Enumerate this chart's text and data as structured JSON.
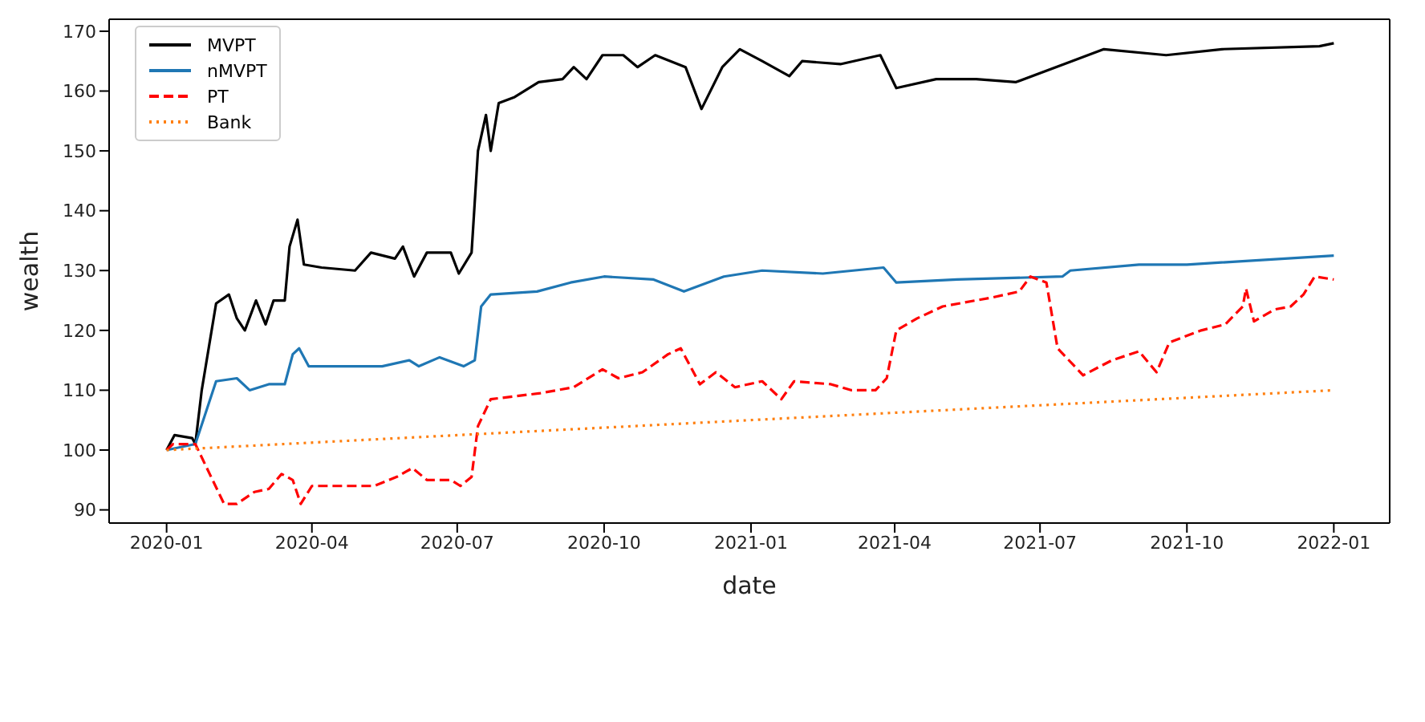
{
  "chart_data": {
    "type": "line",
    "xlabel": "date",
    "ylabel": "wealth",
    "xlim": [
      "2019-11-26",
      "2022-02-05"
    ],
    "ylim": [
      87.8,
      172
    ],
    "xticks": [
      {
        "value": "2020-01-01",
        "label": "2020-01"
      },
      {
        "value": "2020-04-01",
        "label": "2020-04"
      },
      {
        "value": "2020-07-01",
        "label": "2020-07"
      },
      {
        "value": "2020-10-01",
        "label": "2020-10"
      },
      {
        "value": "2021-01-01",
        "label": "2021-01"
      },
      {
        "value": "2021-04-01",
        "label": "2021-04"
      },
      {
        "value": "2021-07-01",
        "label": "2021-07"
      },
      {
        "value": "2021-10-01",
        "label": "2021-10"
      },
      {
        "value": "2022-01-01",
        "label": "2022-01"
      }
    ],
    "yticks": [
      90,
      100,
      110,
      120,
      130,
      140,
      150,
      160,
      170
    ],
    "grid": false,
    "legend": "top left",
    "marker": "none",
    "series": [
      {
        "name": "MVPT",
        "color": "#000000",
        "line_style": "solid",
        "x": [
          "2020-01-01",
          "2020-01-06",
          "2020-01-17",
          "2020-01-19",
          "2020-01-23",
          "2020-02-01",
          "2020-02-09",
          "2020-02-14",
          "2020-02-19",
          "2020-02-26",
          "2020-03-03",
          "2020-03-08",
          "2020-03-15",
          "2020-03-18",
          "2020-03-23",
          "2020-03-27",
          "2020-04-07",
          "2020-04-28",
          "2020-05-08",
          "2020-05-23",
          "2020-05-28",
          "2020-06-04",
          "2020-06-12",
          "2020-06-27",
          "2020-07-02",
          "2020-07-10",
          "2020-07-14",
          "2020-07-19",
          "2020-07-22",
          "2020-07-27",
          "2020-08-06",
          "2020-08-21",
          "2020-09-05",
          "2020-09-12",
          "2020-09-20",
          "2020-09-30",
          "2020-10-13",
          "2020-10-22",
          "2020-11-02",
          "2020-11-21",
          "2020-12-01",
          "2020-12-14",
          "2020-12-25",
          "2021-01-08",
          "2021-01-25",
          "2021-02-02",
          "2021-02-26",
          "2021-03-23",
          "2021-04-02",
          "2021-04-27",
          "2021-05-22",
          "2021-06-16",
          "2021-07-21",
          "2021-08-10",
          "2021-09-18",
          "2021-10-23",
          "2021-12-23",
          "2022-01-01"
        ],
        "values": [
          100,
          102.5,
          102,
          101,
          110,
          124.5,
          126,
          122,
          120,
          125,
          121,
          125,
          125,
          134,
          138.5,
          131,
          130.5,
          130,
          133,
          132,
          134,
          129,
          133,
          133,
          129.5,
          133,
          150,
          156,
          150,
          158,
          159,
          161.5,
          162,
          164,
          162,
          166,
          166,
          164,
          166,
          164,
          157,
          164,
          167,
          165,
          162.5,
          165,
          164.5,
          166,
          160.5,
          162,
          162,
          161.5,
          165,
          167,
          166,
          167,
          167.5,
          168
        ]
      },
      {
        "name": "nMVPT",
        "color": "#1f77b4",
        "line_style": "solid",
        "x": [
          "2020-01-01",
          "2020-01-19",
          "2020-02-01",
          "2020-02-14",
          "2020-02-22",
          "2020-03-05",
          "2020-03-15",
          "2020-03-20",
          "2020-03-24",
          "2020-03-30",
          "2020-05-15",
          "2020-06-01",
          "2020-06-07",
          "2020-06-20",
          "2020-07-05",
          "2020-07-12",
          "2020-07-16",
          "2020-07-22",
          "2020-08-20",
          "2020-09-10",
          "2020-10-01",
          "2020-11-01",
          "2020-11-20",
          "2020-12-15",
          "2021-01-08",
          "2021-02-15",
          "2021-03-25",
          "2021-04-02",
          "2021-05-10",
          "2021-07-15",
          "2021-07-20",
          "2021-09-01",
          "2021-10-01",
          "2022-01-01"
        ],
        "values": [
          100,
          101,
          111.5,
          112,
          110,
          111,
          111,
          116,
          117,
          114,
          114,
          115,
          114,
          115.5,
          114,
          115,
          124,
          126,
          126.5,
          128,
          129,
          128.5,
          126.5,
          129,
          130,
          129.5,
          130.5,
          128,
          128.5,
          129,
          130,
          131,
          131,
          132.5
        ]
      },
      {
        "name": "PT",
        "color": "#ff0000",
        "line_style": "dashed",
        "x": [
          "2020-01-01",
          "2020-01-05",
          "2020-01-19",
          "2020-02-06",
          "2020-02-14",
          "2020-02-25",
          "2020-03-05",
          "2020-03-13",
          "2020-03-20",
          "2020-03-25",
          "2020-04-01",
          "2020-05-10",
          "2020-05-24",
          "2020-06-03",
          "2020-06-12",
          "2020-06-27",
          "2020-07-03",
          "2020-07-10",
          "2020-07-14",
          "2020-07-22",
          "2020-08-22",
          "2020-09-12",
          "2020-09-30",
          "2020-10-10",
          "2020-10-25",
          "2020-11-10",
          "2020-11-18",
          "2020-11-30",
          "2020-12-10",
          "2020-12-22",
          "2021-01-08",
          "2021-01-20",
          "2021-01-28",
          "2021-02-20",
          "2021-03-05",
          "2021-03-20",
          "2021-03-27",
          "2021-04-02",
          "2021-04-15",
          "2021-05-01",
          "2021-06-01",
          "2021-06-18",
          "2021-06-25",
          "2021-07-05",
          "2021-07-12",
          "2021-07-28",
          "2021-08-15",
          "2021-09-01",
          "2021-09-12",
          "2021-09-20",
          "2021-10-10",
          "2021-10-25",
          "2021-11-05",
          "2021-11-07",
          "2021-11-12",
          "2021-11-25",
          "2021-12-05",
          "2021-12-13",
          "2021-12-20",
          "2022-01-01"
        ],
        "values": [
          100,
          101,
          101,
          91,
          91,
          93,
          93.5,
          96,
          95,
          91,
          94,
          94,
          95.5,
          97,
          95,
          95,
          94,
          95.5,
          104,
          108.5,
          109.5,
          110.5,
          113.5,
          112,
          113,
          116,
          117,
          111,
          113,
          110.5,
          111.5,
          108.5,
          111.5,
          111,
          110,
          110,
          112,
          120,
          122,
          124,
          125.5,
          126.5,
          129,
          128,
          117,
          112.5,
          115,
          116.5,
          113,
          118,
          120,
          121,
          124,
          127,
          121.5,
          123.5,
          124,
          126,
          129,
          128.5
        ]
      },
      {
        "name": "Bank",
        "color": "#ff7f0e",
        "line_style": "dotted",
        "x": [
          "2020-01-01",
          "2022-01-01"
        ],
        "values": [
          100,
          110
        ]
      }
    ]
  }
}
